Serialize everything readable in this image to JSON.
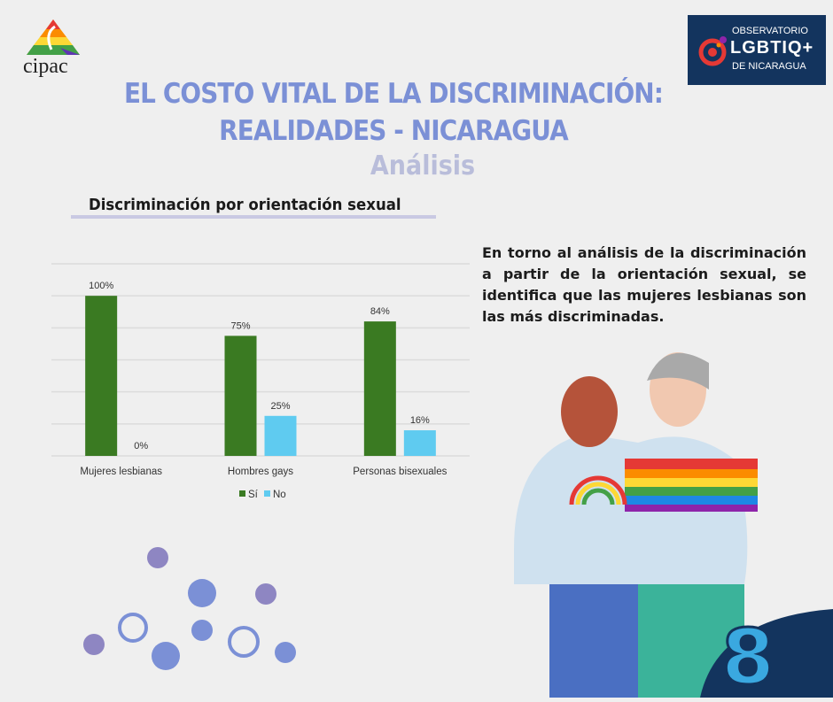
{
  "header": {
    "title_line1": "EL COSTO VITAL DE LA DISCRIMINACIÓN:",
    "title_line2": "REALIDADES - NICARAGUA",
    "subtitle": "Análisis",
    "logo_left": "cipac",
    "logo_right": {
      "line1": "OBSERVATORIO",
      "line2": "LGBTIQ+",
      "line3": "DE NICARAGUA"
    }
  },
  "section_title": "Discriminación por orientación sexual",
  "description": "En torno al análisis de la discriminación a partir de la orientación sexual, se identifica que las mujeres lesbianas son las más discriminadas.",
  "page_number": "8",
  "colors": {
    "title": "#7b90d6",
    "si": "#3a7a22",
    "no": "#5fcbf0",
    "navy": "#13345e"
  },
  "chart_data": {
    "type": "bar",
    "title": "Discriminación por orientación sexual",
    "categories": [
      "Mujeres lesbianas",
      "Hombres gays",
      "Personas bisexuales"
    ],
    "series": [
      {
        "name": "Sí",
        "values": [
          100,
          75,
          84
        ],
        "labels": [
          "100%",
          "75%",
          "84%"
        ]
      },
      {
        "name": "No",
        "values": [
          0,
          25,
          16
        ],
        "labels": [
          "0%",
          "25%",
          "16%"
        ]
      }
    ],
    "ylim": [
      0,
      120
    ],
    "grid": true,
    "legend": "bottom",
    "xlabel": "",
    "ylabel": ""
  }
}
